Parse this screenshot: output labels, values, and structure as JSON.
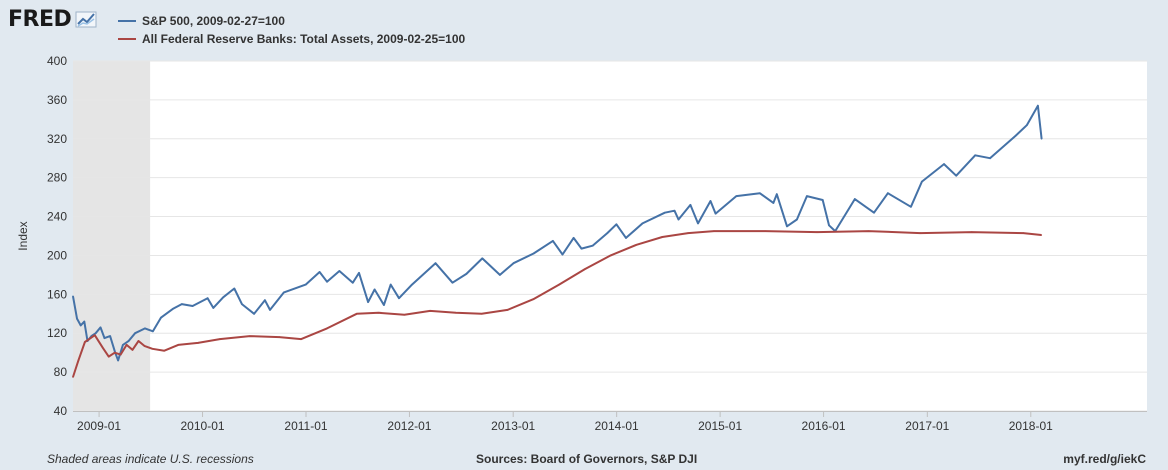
{
  "header": {
    "logo_text": "FRED",
    "logo_icon": "chart-line-icon"
  },
  "footer": {
    "note": "Shaded areas indicate U.S. recessions",
    "sources": "Sources: Board of Governors, S&P DJI",
    "short_url": "myf.red/g/iekC"
  },
  "colors": {
    "sp500": "#4572a7",
    "fed": "#aa4643",
    "recession": "#e5e5e5",
    "grid": "#e6e6e6",
    "background": "#e1e9f0",
    "plot_bg": "#ffffff"
  },
  "chart_data": {
    "type": "line",
    "title": "",
    "xlabel": "",
    "ylabel": "Index",
    "ylim": [
      40,
      400
    ],
    "yticks": [
      40,
      80,
      120,
      160,
      200,
      240,
      280,
      320,
      360,
      400
    ],
    "xlim": [
      "2008-10-01",
      "2019-02-15"
    ],
    "xticks": [
      {
        "date": "2009-01-01",
        "label": "2009-01"
      },
      {
        "date": "2010-01-01",
        "label": "2010-01"
      },
      {
        "date": "2011-01-01",
        "label": "2011-01"
      },
      {
        "date": "2012-01-01",
        "label": "2012-01"
      },
      {
        "date": "2013-01-01",
        "label": "2013-01"
      },
      {
        "date": "2014-01-01",
        "label": "2014-01"
      },
      {
        "date": "2015-01-01",
        "label": "2015-01"
      },
      {
        "date": "2016-01-01",
        "label": "2016-01"
      },
      {
        "date": "2017-01-01",
        "label": "2017-01"
      },
      {
        "date": "2018-01-01",
        "label": "2018-01"
      }
    ],
    "grid": true,
    "legend_position": "top-left",
    "recessions": [
      {
        "start": "2008-10-01",
        "end": "2009-06-30"
      }
    ],
    "series": [
      {
        "name": "S&P 500, 2009-02-27=100",
        "color": "#4572a7",
        "points": [
          [
            "2008-10-01",
            158
          ],
          [
            "2008-10-15",
            135
          ],
          [
            "2008-10-28",
            128
          ],
          [
            "2008-11-10",
            132
          ],
          [
            "2008-11-21",
            112
          ],
          [
            "2008-12-05",
            117
          ],
          [
            "2008-12-20",
            120
          ],
          [
            "2009-01-06",
            126
          ],
          [
            "2009-01-20",
            115
          ],
          [
            "2009-02-09",
            117
          ],
          [
            "2009-02-27",
            100
          ],
          [
            "2009-03-09",
            92
          ],
          [
            "2009-03-26",
            108
          ],
          [
            "2009-04-15",
            112
          ],
          [
            "2009-05-08",
            120
          ],
          [
            "2009-06-12",
            125
          ],
          [
            "2009-07-10",
            122
          ],
          [
            "2009-08-07",
            136
          ],
          [
            "2009-09-18",
            145
          ],
          [
            "2009-10-20",
            150
          ],
          [
            "2009-11-27",
            148
          ],
          [
            "2010-01-19",
            156
          ],
          [
            "2010-02-08",
            146
          ],
          [
            "2010-03-15",
            157
          ],
          [
            "2010-04-23",
            166
          ],
          [
            "2010-05-20",
            150
          ],
          [
            "2010-07-02",
            140
          ],
          [
            "2010-08-09",
            154
          ],
          [
            "2010-08-27",
            144
          ],
          [
            "2010-10-15",
            162
          ],
          [
            "2010-12-31",
            170
          ],
          [
            "2011-02-18",
            183
          ],
          [
            "2011-03-16",
            173
          ],
          [
            "2011-04-29",
            184
          ],
          [
            "2011-06-15",
            172
          ],
          [
            "2011-07-07",
            182
          ],
          [
            "2011-08-08",
            152
          ],
          [
            "2011-08-31",
            165
          ],
          [
            "2011-10-03",
            149
          ],
          [
            "2011-10-27",
            170
          ],
          [
            "2011-11-25",
            156
          ],
          [
            "2012-01-10",
            170
          ],
          [
            "2012-04-02",
            192
          ],
          [
            "2012-06-01",
            172
          ],
          [
            "2012-07-20",
            181
          ],
          [
            "2012-09-14",
            197
          ],
          [
            "2012-11-15",
            180
          ],
          [
            "2013-01-02",
            192
          ],
          [
            "2013-03-14",
            202
          ],
          [
            "2013-05-21",
            215
          ],
          [
            "2013-06-24",
            201
          ],
          [
            "2013-08-02",
            218
          ],
          [
            "2013-08-30",
            207
          ],
          [
            "2013-10-08",
            210
          ],
          [
            "2013-11-29",
            223
          ],
          [
            "2013-12-31",
            232
          ],
          [
            "2014-02-03",
            218
          ],
          [
            "2014-04-02",
            233
          ],
          [
            "2014-06-20",
            244
          ],
          [
            "2014-07-24",
            246
          ],
          [
            "2014-08-07",
            237
          ],
          [
            "2014-09-18",
            252
          ],
          [
            "2014-10-15",
            233
          ],
          [
            "2014-11-28",
            256
          ],
          [
            "2014-12-16",
            243
          ],
          [
            "2015-02-27",
            261
          ],
          [
            "2015-05-21",
            264
          ],
          [
            "2015-07-08",
            254
          ],
          [
            "2015-07-20",
            263
          ],
          [
            "2015-08-25",
            230
          ],
          [
            "2015-09-29",
            237
          ],
          [
            "2015-11-03",
            261
          ],
          [
            "2015-12-29",
            257
          ],
          [
            "2016-01-20",
            231
          ],
          [
            "2016-02-11",
            225
          ],
          [
            "2016-04-20",
            258
          ],
          [
            "2016-06-27",
            244
          ],
          [
            "2016-08-15",
            264
          ],
          [
            "2016-11-04",
            250
          ],
          [
            "2016-12-13",
            276
          ],
          [
            "2017-03-01",
            294
          ],
          [
            "2017-04-13",
            282
          ],
          [
            "2017-06-19",
            303
          ],
          [
            "2017-08-10",
            300
          ],
          [
            "2017-11-08",
            323
          ],
          [
            "2017-12-18",
            334
          ],
          [
            "2018-01-26",
            354
          ],
          [
            "2018-02-08",
            320
          ]
        ]
      },
      {
        "name": "All Federal Reserve Banks: Total Assets, 2009-02-25=100",
        "color": "#aa4643",
        "points": [
          [
            "2008-10-01",
            75
          ],
          [
            "2008-10-20",
            92
          ],
          [
            "2008-11-12",
            111
          ],
          [
            "2008-12-17",
            118
          ],
          [
            "2009-01-14",
            105
          ],
          [
            "2009-02-04",
            96
          ],
          [
            "2009-02-25",
            100
          ],
          [
            "2009-03-18",
            98
          ],
          [
            "2009-04-08",
            108
          ],
          [
            "2009-04-29",
            103
          ],
          [
            "2009-05-20",
            112
          ],
          [
            "2009-06-10",
            107
          ],
          [
            "2009-07-08",
            104
          ],
          [
            "2009-08-19",
            102
          ],
          [
            "2009-10-07",
            108
          ],
          [
            "2009-12-16",
            110
          ],
          [
            "2010-03-03",
            114
          ],
          [
            "2010-06-16",
            117
          ],
          [
            "2010-09-29",
            116
          ],
          [
            "2010-12-15",
            114
          ],
          [
            "2011-03-16",
            125
          ],
          [
            "2011-06-29",
            140
          ],
          [
            "2011-09-14",
            141
          ],
          [
            "2011-12-14",
            139
          ],
          [
            "2012-03-14",
            143
          ],
          [
            "2012-06-13",
            141
          ],
          [
            "2012-09-12",
            140
          ],
          [
            "2012-12-12",
            144
          ],
          [
            "2013-03-13",
            155
          ],
          [
            "2013-06-12",
            170
          ],
          [
            "2013-09-11",
            186
          ],
          [
            "2013-12-11",
            200
          ],
          [
            "2014-03-12",
            211
          ],
          [
            "2014-06-11",
            219
          ],
          [
            "2014-09-10",
            223
          ],
          [
            "2014-12-10",
            225
          ],
          [
            "2015-06-10",
            225
          ],
          [
            "2015-12-09",
            224
          ],
          [
            "2016-06-08",
            225
          ],
          [
            "2016-12-07",
            223
          ],
          [
            "2017-06-07",
            224
          ],
          [
            "2017-12-06",
            223
          ],
          [
            "2018-02-07",
            221
          ]
        ]
      }
    ]
  }
}
